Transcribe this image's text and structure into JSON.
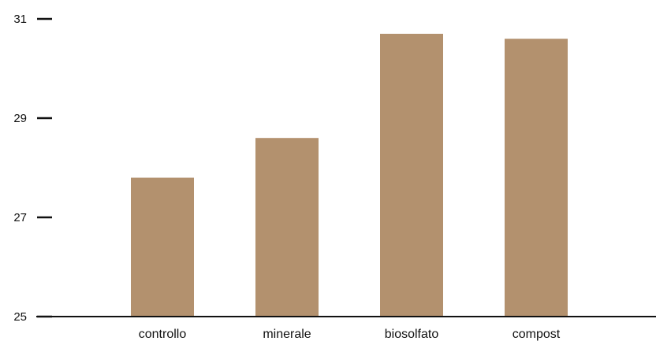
{
  "chart_data": {
    "type": "bar",
    "categories": [
      "controllo",
      "minerale",
      "biosolfato",
      "compost"
    ],
    "values": [
      27.8,
      28.6,
      30.7,
      30.6
    ],
    "ylim": [
      25,
      31
    ],
    "yticks": [
      25,
      27,
      29,
      31
    ],
    "grid": false,
    "bar_color": "#b3916e",
    "axis_color": "#111111"
  }
}
